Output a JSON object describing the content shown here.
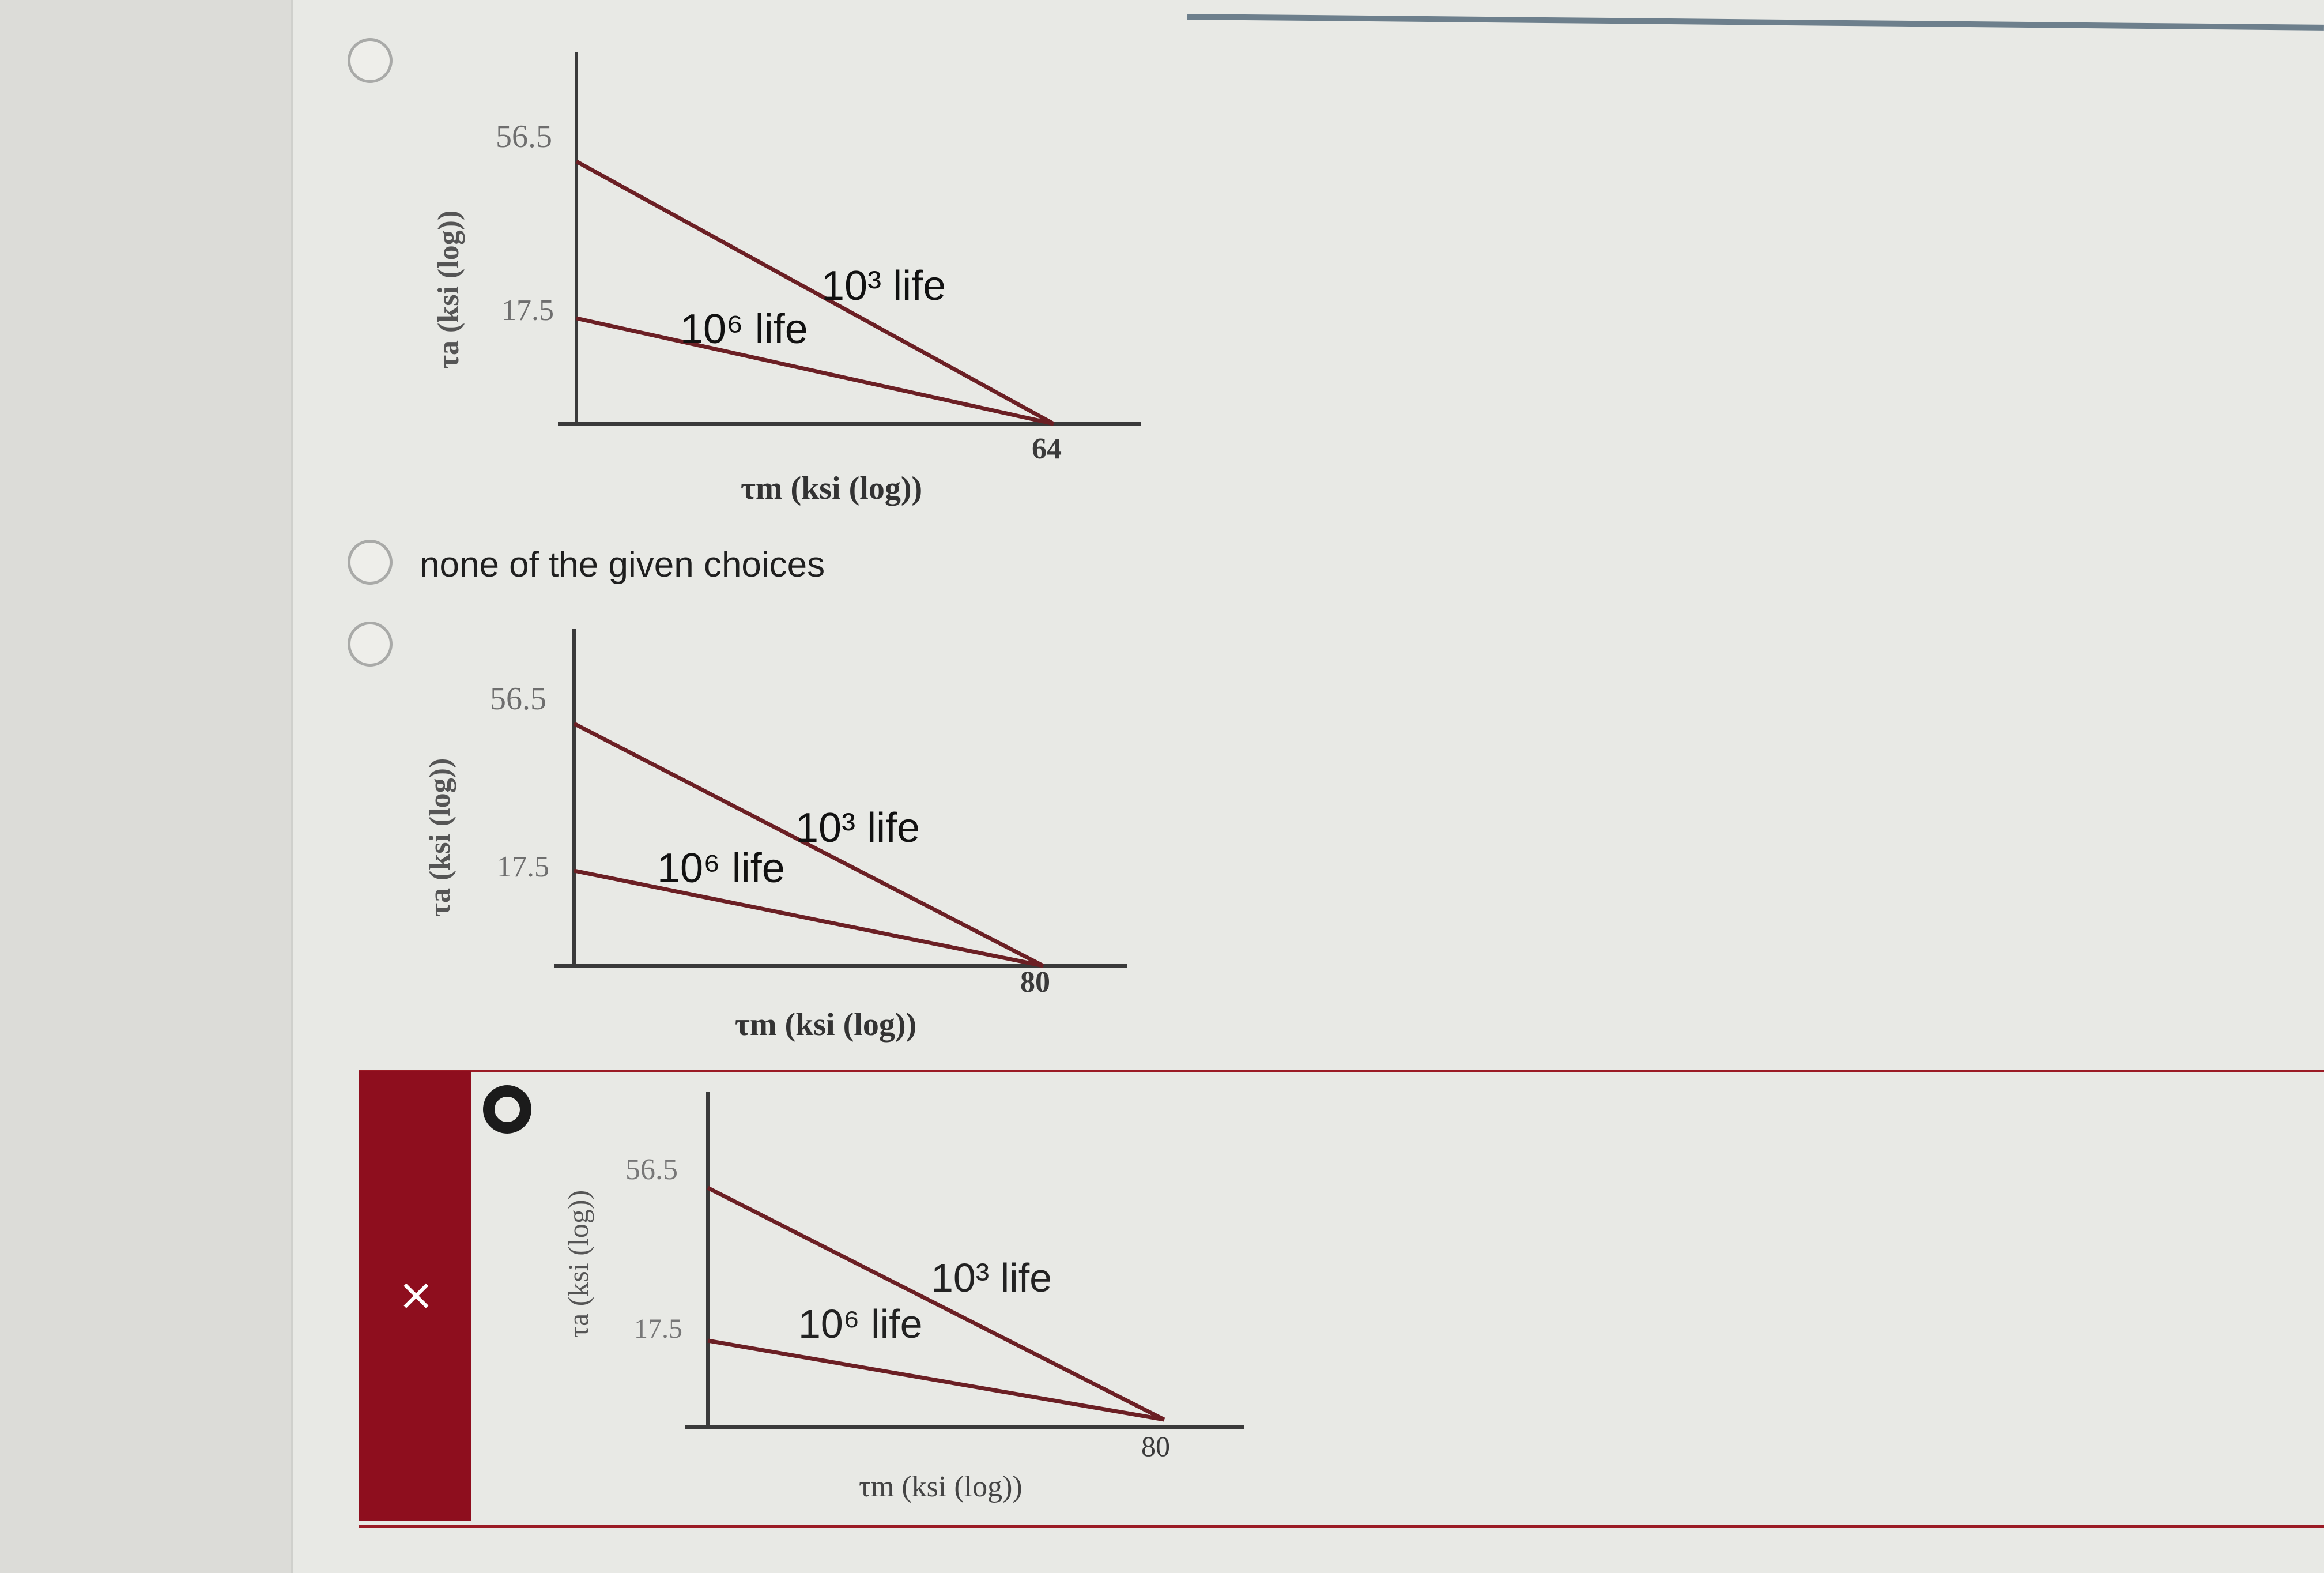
{
  "page": {
    "incorrect_mark": "×"
  },
  "choices": [
    {
      "id": "choice-a",
      "type": "chart",
      "selected": false,
      "chart": {
        "y_label": "τa (ksi (log))",
        "x_label": "τm (ksi (log))",
        "y_ticks": [
          "56.5",
          "17.5"
        ],
        "x_end_label": "64",
        "line_labels": [
          "10³ life",
          "10⁶ life"
        ]
      }
    },
    {
      "id": "choice-b",
      "type": "text",
      "selected": false,
      "text": "none of the given choices"
    },
    {
      "id": "choice-c",
      "type": "chart",
      "selected": false,
      "chart": {
        "y_label": "τa (ksi (log))",
        "x_label": "τm (ksi (log))",
        "y_ticks": [
          "56.5",
          "17.5"
        ],
        "x_end_label": "80",
        "line_labels": [
          "10³ life",
          "10⁶ life"
        ]
      }
    },
    {
      "id": "choice-d",
      "type": "chart",
      "selected": true,
      "marked": "incorrect",
      "chart": {
        "y_label": "τa (ksi (log))",
        "x_label": "τm (ksi (log))",
        "y_ticks": [
          "56.5",
          "17.5"
        ],
        "x_end_label": "80",
        "line_labels": [
          "10³ life",
          "10⁶ life"
        ]
      }
    }
  ],
  "chart_data": [
    {
      "type": "line",
      "ylabel": "τa (ksi (log))",
      "xlabel": "τm (ksi (log))",
      "y_ticks": [
        56.5,
        17.5
      ],
      "x_ticks": [
        64
      ],
      "series": [
        {
          "name": "10³ life",
          "points": [
            [
              0,
              56.5
            ],
            [
              64,
              0
            ]
          ]
        },
        {
          "name": "10⁶ life",
          "points": [
            [
              0,
              17.5
            ],
            [
              64,
              0
            ]
          ]
        }
      ],
      "line_color": "#6b1f24"
    },
    {
      "type": "line",
      "ylabel": "τa (ksi (log))",
      "xlabel": "τm (ksi (log))",
      "y_ticks": [
        56.5,
        17.5
      ],
      "x_ticks": [
        80
      ],
      "series": [
        {
          "name": "10³ life",
          "points": [
            [
              0,
              56.5
            ],
            [
              80,
              0
            ]
          ]
        },
        {
          "name": "10⁶ life",
          "points": [
            [
              0,
              17.5
            ],
            [
              80,
              0
            ]
          ]
        }
      ],
      "line_color": "#6b1f24"
    },
    {
      "type": "line",
      "ylabel": "τa (ksi (log))",
      "xlabel": "τm (ksi (log))",
      "y_ticks": [
        56.5,
        17.5
      ],
      "x_ticks": [
        80
      ],
      "series": [
        {
          "name": "10³ life",
          "points": [
            [
              0,
              56.5
            ],
            [
              80,
              0
            ]
          ]
        },
        {
          "name": "10⁶ life",
          "points": [
            [
              0,
              17.5
            ],
            [
              80,
              0
            ]
          ]
        }
      ],
      "line_color": "#6b1f24"
    }
  ]
}
